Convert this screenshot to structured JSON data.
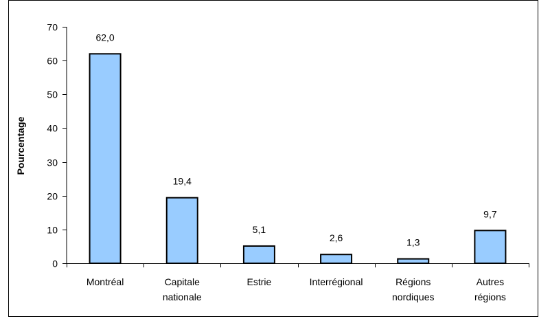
{
  "chart_data": {
    "type": "bar",
    "categories": [
      [
        "Montréal"
      ],
      [
        "Capitale",
        "nationale"
      ],
      [
        "Estrie"
      ],
      [
        "Interrégional"
      ],
      [
        "Régions",
        "nordiques"
      ],
      [
        "Autres",
        "régions"
      ]
    ],
    "values": [
      62.0,
      19.4,
      5.1,
      2.6,
      1.3,
      9.7
    ],
    "value_labels": [
      "62,0",
      "19,4",
      "5,1",
      "2,6",
      "1,3",
      "9,7"
    ],
    "title": "",
    "xlabel": "",
    "ylabel": "Pourcentage",
    "ylim": [
      0,
      70
    ],
    "yticks": [
      0,
      10,
      20,
      30,
      40,
      50,
      60,
      70
    ],
    "grid": false,
    "legend": "none",
    "colors": {
      "bar_fill": "#99ccff",
      "bar_stroke": "#000000",
      "axis": "#000000"
    }
  }
}
